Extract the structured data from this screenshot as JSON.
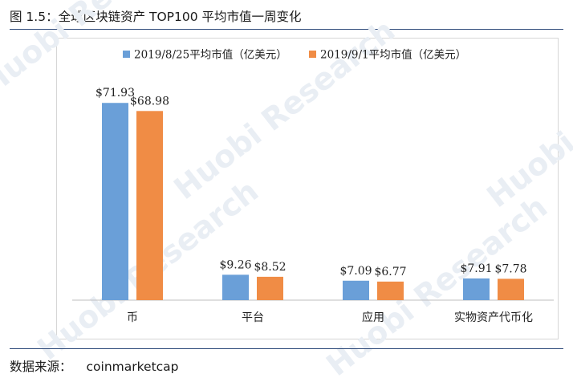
{
  "figure": {
    "title": "图 1.5：全球区块链资产 TOP100 平均市值一周变化",
    "source_label": "数据来源：",
    "source_value": "coinmarketcap"
  },
  "watermark_text": "Huobi Research",
  "colors": {
    "series_a": "#6a9fd8",
    "series_b": "#f08c45",
    "axis": "#bfbfbf",
    "rule": "#2e4a7a"
  },
  "chart_data": {
    "type": "bar",
    "categories": [
      "币",
      "平台",
      "应用",
      "实物资产代币化"
    ],
    "series": [
      {
        "name": "2019/8/25平均市值（亿美元）",
        "values": [
          71.93,
          9.26,
          7.09,
          7.91
        ],
        "labels": [
          "$71.93",
          "$9.26",
          "$7.09",
          "$7.91"
        ]
      },
      {
        "name": "2019/9/1平均市值（亿美元）",
        "values": [
          68.98,
          8.52,
          6.77,
          7.78
        ],
        "labels": [
          "$68.98",
          "$8.52",
          "$6.77",
          "$7.78"
        ]
      }
    ],
    "title": "",
    "xlabel": "",
    "ylabel": "",
    "ylim": [
      0,
      72
    ],
    "legend": "top",
    "grid": false
  }
}
